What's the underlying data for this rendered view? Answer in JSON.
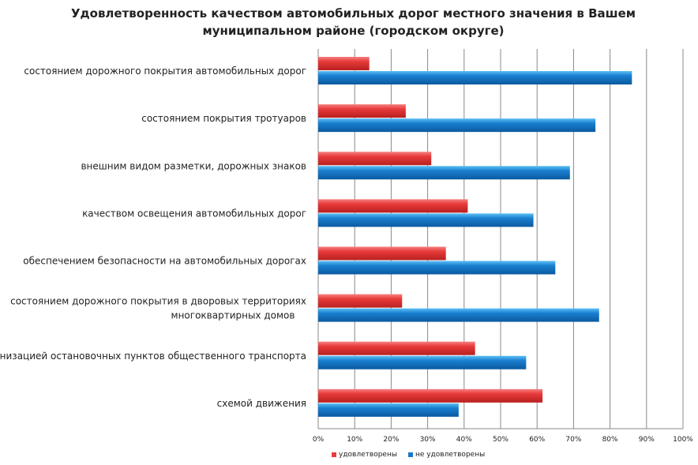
{
  "chart_data": {
    "type": "bar",
    "orientation": "horizontal",
    "title": "Удовлетворенность качеством автомобильных дорог местного значения в Вашем муниципальном районе (городском округе)",
    "categories": [
      "состоянием дорожного покрытия автомобильных дорог",
      "состоянием покрытия тротуаров",
      "внешним видом разметки, дорожных знаков",
      "качеством освещения автомобильных дорог",
      "обеспечением безопасности на автомобильных дорогах",
      "состоянием дорожного покрытия в дворовых территориях многоквартирных домов",
      "организацией остановочных пунктов общественного транспорта",
      "схемой движения"
    ],
    "series": [
      {
        "name": "удовлетворены",
        "color": "#e83a3a",
        "values": [
          14,
          24,
          31,
          41,
          35,
          23,
          43,
          61.5
        ]
      },
      {
        "name": "не удовлетворены",
        "color": "#1a78c8",
        "values": [
          86,
          76,
          69,
          59,
          65,
          77,
          57,
          38.5
        ]
      }
    ],
    "xlim": [
      0,
      100
    ],
    "xticks": [
      "0%",
      "10%",
      "20%",
      "30%",
      "40%",
      "50%",
      "60%",
      "70%",
      "80%",
      "90%",
      "100%"
    ],
    "grid": true,
    "legend": "bottom"
  }
}
